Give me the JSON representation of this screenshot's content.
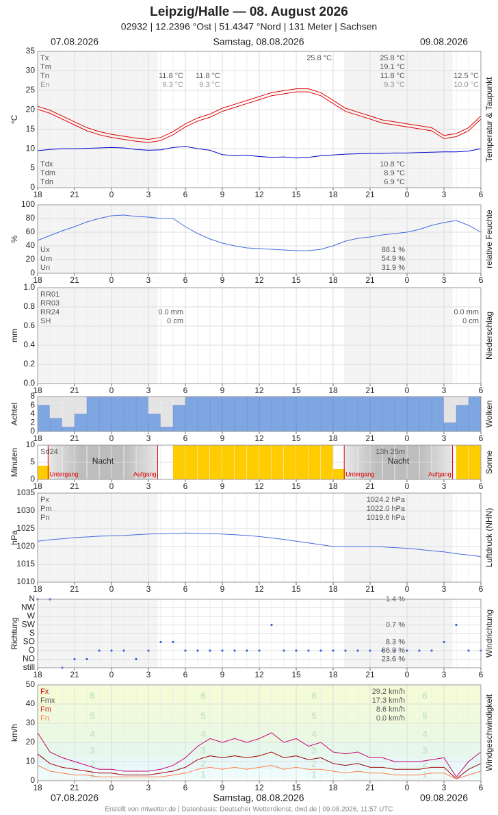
{
  "header": {
    "title": "Leipzig/Halle  —  08. August 2026",
    "subtitle": "02932  |  12.2396 °Ost  |  51.4347 °Nord  |  131 Meter  |  Sachsen",
    "dates": [
      "07.08.2026",
      "Samstag, 08.08.2026",
      "09.08.2026"
    ]
  },
  "footer": "Erstellt von mtwetter.de | Datenbasis: Deutscher Wetterdienst, dwd.de | 09.08.2026, 11:57 UTC",
  "hours": [
    "18",
    "21",
    "0",
    "3",
    "6",
    "9",
    "12",
    "15",
    "18",
    "21",
    "0",
    "3",
    "6"
  ],
  "sun_events": [
    {
      "label": "Untergang",
      "x": 0.85
    },
    {
      "label": "Aufgang",
      "x": 9.75
    },
    {
      "label": "Untergang",
      "x": 24.9
    },
    {
      "label": "Aufgang",
      "x": 33.7
    }
  ],
  "night_label": "Nacht",
  "chart_data": [
    {
      "type": "line",
      "y_label": "°C",
      "side_label": "Temperatur & Taupunkt",
      "ylim": [
        0,
        35
      ],
      "yticks": [
        0,
        5,
        10,
        15,
        20,
        25,
        30,
        35
      ],
      "series": [
        {
          "name": "Tx",
          "color": "#e00000",
          "values": [
            20.9,
            19.9,
            18.4,
            16.9,
            15.4,
            14.4,
            13.7,
            13.2,
            12.7,
            12.4,
            12.9,
            14.4,
            16.4,
            17.9,
            18.9,
            20.4,
            21.4,
            22.4,
            23.4,
            24.4,
            24.9,
            25.4,
            25.4,
            24.4,
            22.4,
            20.4,
            19.4,
            18.4,
            17.4,
            16.9,
            16.4,
            15.9,
            15.4,
            13.4,
            13.9,
            15.4,
            18.4
          ]
        },
        {
          "name": "Tn",
          "color": "#e00000",
          "values": [
            20.1,
            19.1,
            17.6,
            16.1,
            14.6,
            13.6,
            12.9,
            12.4,
            11.9,
            11.6,
            12.1,
            13.6,
            15.6,
            17.1,
            18.1,
            19.6,
            20.6,
            21.6,
            22.6,
            23.6,
            24.1,
            24.6,
            24.6,
            23.6,
            21.6,
            19.6,
            18.6,
            17.6,
            16.6,
            16.1,
            15.6,
            15.1,
            14.6,
            12.6,
            13.1,
            14.6,
            17.6
          ]
        },
        {
          "name": "Tdm",
          "color": "#0000cc",
          "values": [
            9.5,
            9.8,
            10,
            10,
            10.1,
            10.2,
            10.3,
            10.2,
            9.8,
            9.6,
            9.7,
            10.3,
            10.6,
            10,
            9.6,
            8.5,
            8.2,
            8.3,
            8,
            7.8,
            7.9,
            7.6,
            7.8,
            8.2,
            8.4,
            8.6,
            8.7,
            8.8,
            8.8,
            8.9,
            8.9,
            9,
            9.1,
            9.2,
            9.2,
            9.4,
            10
          ]
        }
      ],
      "legend": [
        "Tx",
        "Tm",
        "Tn",
        "En"
      ],
      "legend2": [
        "Tdx",
        "Tdm",
        "Tdn"
      ],
      "blocks": [
        [
          "25.8 °C"
        ],
        [
          "11.8 °C",
          "9.3 °C"
        ],
        [
          "11.8 °C",
          "9.3 °C"
        ],
        [
          "25.8 °C",
          "19.1 °C",
          "11.8 °C",
          "9.3 °C"
        ],
        [
          "12.5 °C",
          "10.0 °C"
        ],
        [
          "10.8 °C",
          "8.9 °C",
          "6.9 °C"
        ]
      ]
    },
    {
      "type": "line",
      "y_label": "%",
      "side_label": "relative Feuchte",
      "ylim": [
        0,
        100
      ],
      "yticks": [
        0,
        20,
        40,
        60,
        80,
        100
      ],
      "series": [
        {
          "name": "Um",
          "color": "#4169e1",
          "values": [
            48,
            55,
            62,
            68,
            75,
            80,
            84,
            85,
            83,
            82,
            80,
            80,
            68,
            58,
            50,
            44,
            40,
            37,
            36,
            35,
            34,
            33,
            33,
            35,
            40,
            47,
            51,
            53,
            56,
            58,
            60,
            64,
            70,
            74,
            77,
            70,
            60
          ]
        }
      ],
      "legend": [
        "Ux",
        "Um",
        "Un"
      ],
      "blocks": [
        [
          "88.1 %",
          "54.9 %",
          "31.9 %"
        ]
      ]
    },
    {
      "type": "line",
      "y_label": "mm",
      "side_label": "Niederschlag",
      "ylim": [
        0,
        1
      ],
      "yticks": [
        {
          "value": 0,
          "label": "0.0"
        },
        0.2,
        0.4,
        0.6,
        0.8,
        {
          "value": 1,
          "label": "1.0"
        }
      ],
      "series": [],
      "legend": [
        "RR01",
        "RR03",
        "RR24",
        "SH"
      ],
      "blocks": [
        [
          "0.0 mm",
          "0 cm"
        ],
        [
          "0.0 mm",
          "0 cm"
        ]
      ]
    },
    {
      "type": "bar",
      "y_label": "Achtel",
      "side_label": "Wolken",
      "ylim": [
        0,
        8
      ],
      "yticks": [
        0,
        2,
        4,
        6,
        8
      ],
      "color": "#7ea6e0",
      "values": [
        6,
        3,
        1,
        4,
        8,
        8,
        8,
        8,
        8,
        4,
        1,
        6,
        8,
        8,
        8,
        8,
        8,
        8,
        8,
        8,
        8,
        8,
        8,
        8,
        8,
        8,
        8,
        8,
        8,
        8,
        8,
        8,
        8,
        2,
        6,
        8
      ]
    },
    {
      "type": "bar",
      "y_label": "Minuten",
      "side_label": "Sonne",
      "ylim": [
        0,
        10
      ],
      "yticks": [
        0,
        5,
        10
      ],
      "color": "#ffcc00",
      "values": [
        4,
        0,
        0,
        0,
        0,
        0,
        0,
        0,
        0,
        0,
        0,
        10,
        10,
        10,
        10,
        10,
        10,
        10,
        10,
        10,
        10,
        10,
        10,
        10,
        3,
        0,
        0,
        0,
        0,
        0,
        0,
        0,
        0,
        0,
        10,
        10
      ],
      "legend": [
        "Sd24"
      ],
      "blocks": [
        [
          "13h 25m"
        ]
      ]
    },
    {
      "type": "line",
      "y_label": "hPa",
      "side_label": "Luftdruck (NHN)",
      "ylim": [
        1010,
        1035
      ],
      "yticks": [
        1010,
        1015,
        1020,
        1025,
        1030,
        1035
      ],
      "series": [
        {
          "name": "Pm",
          "color": "#4169e1",
          "values": [
            1021.5,
            1021.9,
            1022.2,
            1022.5,
            1022.7,
            1022.9,
            1023,
            1023.1,
            1023.3,
            1023.5,
            1023.6,
            1023.7,
            1023.8,
            1023.7,
            1023.6,
            1023.5,
            1023.3,
            1023.1,
            1022.8,
            1022.4,
            1022,
            1021.5,
            1021,
            1020.5,
            1020,
            1020,
            1020,
            1020,
            1019.9,
            1019.7,
            1019.5,
            1019.2,
            1018.8,
            1018.5,
            1018,
            1017.6,
            1017.2
          ]
        }
      ],
      "legend": [
        "Px",
        "Pm",
        "Pn"
      ],
      "blocks": [
        [
          "1024.2 hPa",
          "1022.0 hPa",
          "1019.6 hPa"
        ]
      ]
    },
    {
      "type": "scatter",
      "y_label": "Richtung",
      "side_label": "Windrichtung",
      "color": "#3a64e0",
      "categories": [
        "N",
        "NW",
        "W",
        "SW",
        "S",
        "SO",
        "O",
        "NO",
        "still"
      ],
      "values": [
        "N",
        "N",
        "still",
        "NO",
        "NO",
        "O",
        "O",
        "O",
        "NO",
        "O",
        "SO",
        "SO",
        "O",
        "O",
        "O",
        "O",
        "O",
        "O",
        "O",
        "SW",
        "O",
        "O",
        "O",
        "O",
        "O",
        "O",
        "O",
        "O",
        "O",
        "O",
        "O",
        "O",
        "O",
        "SO",
        "SW",
        "O",
        "O"
      ],
      "shares": [
        {
          "category": "N",
          "text": "1.4 %"
        },
        {
          "category": "SW",
          "text": "0.7 %"
        },
        {
          "category": "SO",
          "text": "8.3 %"
        },
        {
          "category": "O",
          "text": "66.0 %"
        },
        {
          "category": "NO",
          "text": "23.6 %"
        }
      ]
    },
    {
      "type": "line",
      "y_label": "km/h",
      "side_label": "Windgeschwindigkeit",
      "ylim": [
        0,
        50
      ],
      "yticks": [
        0,
        10,
        20,
        30,
        40,
        50
      ],
      "beaufort": {
        "levels": [
          1,
          2,
          3,
          4,
          5,
          6
        ],
        "bounds": [
          [
            1,
            5
          ],
          [
            6,
            11
          ],
          [
            12,
            19
          ],
          [
            20,
            28
          ],
          [
            29,
            38
          ],
          [
            39,
            49
          ]
        ],
        "colors": [
          "#eefcfc",
          "#e8f8f8",
          "#e6f7ec",
          "#ebf8e2",
          "#f0fadc",
          "#f4fbd6"
        ]
      },
      "series": [
        {
          "name": "Fx",
          "color": "#c8006e",
          "values": [
            25,
            15,
            12,
            10,
            8,
            6,
            6,
            5,
            5,
            5,
            6,
            8,
            12,
            18,
            22,
            20,
            22,
            20,
            22,
            25,
            20,
            22,
            18,
            20,
            15,
            14,
            15,
            12,
            12,
            10,
            10,
            10,
            11,
            12,
            2,
            10,
            15
          ]
        },
        {
          "name": "Fmx",
          "color": "#a00000",
          "values": [
            14,
            9,
            7,
            6,
            5,
            4,
            4,
            3,
            3,
            3,
            4,
            5,
            7,
            11,
            13,
            12,
            13,
            12,
            13,
            15,
            12,
            13,
            11,
            12,
            9,
            8,
            9,
            7,
            7,
            6,
            6,
            6,
            7,
            7,
            1,
            6,
            9
          ]
        },
        {
          "name": "Fm",
          "color": "#ff7a45",
          "values": [
            8,
            5,
            4,
            3,
            3,
            2,
            2,
            2,
            2,
            2,
            2,
            3,
            4,
            6,
            7,
            6,
            7,
            6,
            7,
            8,
            6,
            7,
            6,
            6,
            5,
            4,
            5,
            4,
            4,
            3,
            3,
            3,
            4,
            4,
            1,
            3,
            5
          ]
        }
      ],
      "legend": [
        "Fx",
        "Fmx",
        "Fm",
        "Fn"
      ],
      "legend_colors": [
        "#cc0000",
        "#555555",
        "#dd2222",
        "#ff7f50"
      ],
      "blocks": [
        [
          "29.2 km/h",
          "17.3 km/h",
          "8.6 km/h",
          "0.0 km/h"
        ]
      ]
    }
  ]
}
